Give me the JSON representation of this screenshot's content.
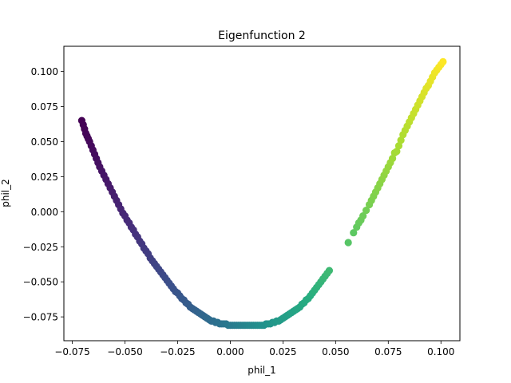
{
  "chart_data": {
    "type": "scatter",
    "title": "Eigenfunction 2",
    "xlabel": "phil_1",
    "ylabel": "phil_2",
    "xlim": [
      -0.079,
      0.109
    ],
    "ylim": [
      -0.092,
      0.118
    ],
    "xticks": [
      -0.075,
      -0.05,
      -0.025,
      0.0,
      0.025,
      0.05,
      0.075,
      0.1
    ],
    "xtick_labels": [
      "−0.075",
      "−0.050",
      "−0.025",
      "0.000",
      "0.025",
      "0.050",
      "0.075",
      "0.100"
    ],
    "yticks": [
      -0.075,
      -0.05,
      -0.025,
      0.0,
      0.025,
      0.05,
      0.075,
      0.1
    ],
    "ytick_labels": [
      "−0.075",
      "−0.050",
      "−0.025",
      "0.000",
      "0.025",
      "0.050",
      "0.075",
      "0.100"
    ],
    "grid": false,
    "colormap": "viridis",
    "color_by": "phil_1",
    "series": [
      {
        "x": [
          -0.0705,
          -0.0698,
          -0.0692,
          -0.0686,
          -0.068,
          -0.0674,
          -0.0668,
          -0.066,
          -0.0652,
          -0.0644,
          -0.0636,
          -0.0628,
          -0.062,
          -0.061,
          -0.06,
          -0.059,
          -0.058,
          -0.057,
          -0.056,
          -0.055,
          -0.054,
          -0.053,
          -0.052,
          -0.051,
          -0.05,
          -0.049,
          -0.048,
          -0.047,
          -0.046,
          -0.045,
          -0.044,
          -0.043,
          -0.042,
          -0.041,
          -0.04,
          -0.039,
          -0.038,
          -0.037,
          -0.036,
          -0.035,
          -0.034,
          -0.033,
          -0.032,
          -0.031,
          -0.03,
          -0.029,
          -0.028,
          -0.027,
          -0.026,
          -0.025,
          -0.024,
          -0.023,
          -0.022,
          -0.021,
          -0.02,
          -0.019,
          -0.018,
          -0.017,
          -0.016,
          -0.015,
          -0.014,
          -0.013,
          -0.012,
          -0.011,
          -0.01,
          -0.009,
          -0.008,
          -0.007,
          -0.006,
          -0.005,
          -0.004,
          -0.003,
          -0.002,
          -0.001,
          0.0,
          0.001,
          0.002,
          0.003,
          0.004,
          0.005,
          0.006,
          0.007,
          0.008,
          0.009,
          0.01,
          0.011,
          0.012,
          0.013,
          0.014,
          0.015,
          0.016,
          0.017,
          0.018,
          0.019,
          0.02,
          0.021,
          0.022,
          0.023,
          0.024,
          0.025,
          0.026,
          0.027,
          0.028,
          0.029,
          0.03,
          0.031,
          0.032,
          0.033,
          0.034,
          0.035,
          0.036,
          0.037,
          0.038,
          0.039,
          0.04,
          0.041,
          0.042,
          0.043,
          0.044,
          0.045,
          0.046,
          0.047,
          0.056,
          0.0585,
          0.06,
          0.061,
          0.062,
          0.063,
          0.0645,
          0.066,
          0.067,
          0.068,
          0.069,
          0.07,
          0.071,
          0.072,
          0.073,
          0.074,
          0.075,
          0.076,
          0.077,
          0.078,
          0.079,
          0.08,
          0.081,
          0.082,
          0.083,
          0.084,
          0.085,
          0.086,
          0.087,
          0.088,
          0.089,
          0.09,
          0.091,
          0.092,
          0.093,
          0.094,
          0.095,
          0.096,
          0.097,
          0.098,
          0.099,
          0.1,
          0.101
        ],
        "y": [
          0.065,
          0.062,
          0.059,
          0.056,
          0.054,
          0.052,
          0.05,
          0.047,
          0.044,
          0.041,
          0.038,
          0.035,
          0.032,
          0.029,
          0.026,
          0.023,
          0.02,
          0.017,
          0.014,
          0.011,
          0.008,
          0.005,
          0.002,
          -0.001,
          -0.003,
          -0.006,
          -0.008,
          -0.011,
          -0.013,
          -0.016,
          -0.018,
          -0.021,
          -0.023,
          -0.026,
          -0.028,
          -0.03,
          -0.033,
          -0.035,
          -0.037,
          -0.039,
          -0.041,
          -0.043,
          -0.045,
          -0.047,
          -0.049,
          -0.051,
          -0.053,
          -0.055,
          -0.057,
          -0.058,
          -0.06,
          -0.062,
          -0.063,
          -0.065,
          -0.066,
          -0.068,
          -0.069,
          -0.07,
          -0.071,
          -0.072,
          -0.073,
          -0.074,
          -0.075,
          -0.076,
          -0.077,
          -0.078,
          -0.078,
          -0.079,
          -0.079,
          -0.08,
          -0.08,
          -0.08,
          -0.08,
          -0.081,
          -0.081,
          -0.081,
          -0.081,
          -0.081,
          -0.081,
          -0.081,
          -0.081,
          -0.081,
          -0.081,
          -0.081,
          -0.081,
          -0.081,
          -0.081,
          -0.081,
          -0.081,
          -0.081,
          -0.081,
          -0.08,
          -0.08,
          -0.08,
          -0.079,
          -0.079,
          -0.078,
          -0.078,
          -0.077,
          -0.076,
          -0.075,
          -0.074,
          -0.073,
          -0.072,
          -0.071,
          -0.07,
          -0.069,
          -0.068,
          -0.066,
          -0.065,
          -0.063,
          -0.062,
          -0.06,
          -0.058,
          -0.056,
          -0.054,
          -0.052,
          -0.05,
          -0.048,
          -0.046,
          -0.044,
          -0.042,
          -0.022,
          -0.015,
          -0.011,
          -0.008,
          -0.006,
          -0.003,
          0.001,
          0.005,
          0.008,
          0.011,
          0.014,
          0.017,
          0.02,
          0.023,
          0.026,
          0.029,
          0.032,
          0.035,
          0.038,
          0.042,
          0.043,
          0.047,
          0.051,
          0.055,
          0.058,
          0.061,
          0.064,
          0.067,
          0.07,
          0.073,
          0.076,
          0.079,
          0.082,
          0.085,
          0.088,
          0.09,
          0.093,
          0.096,
          0.099,
          0.101,
          0.103,
          0.105,
          0.107
        ]
      }
    ]
  }
}
